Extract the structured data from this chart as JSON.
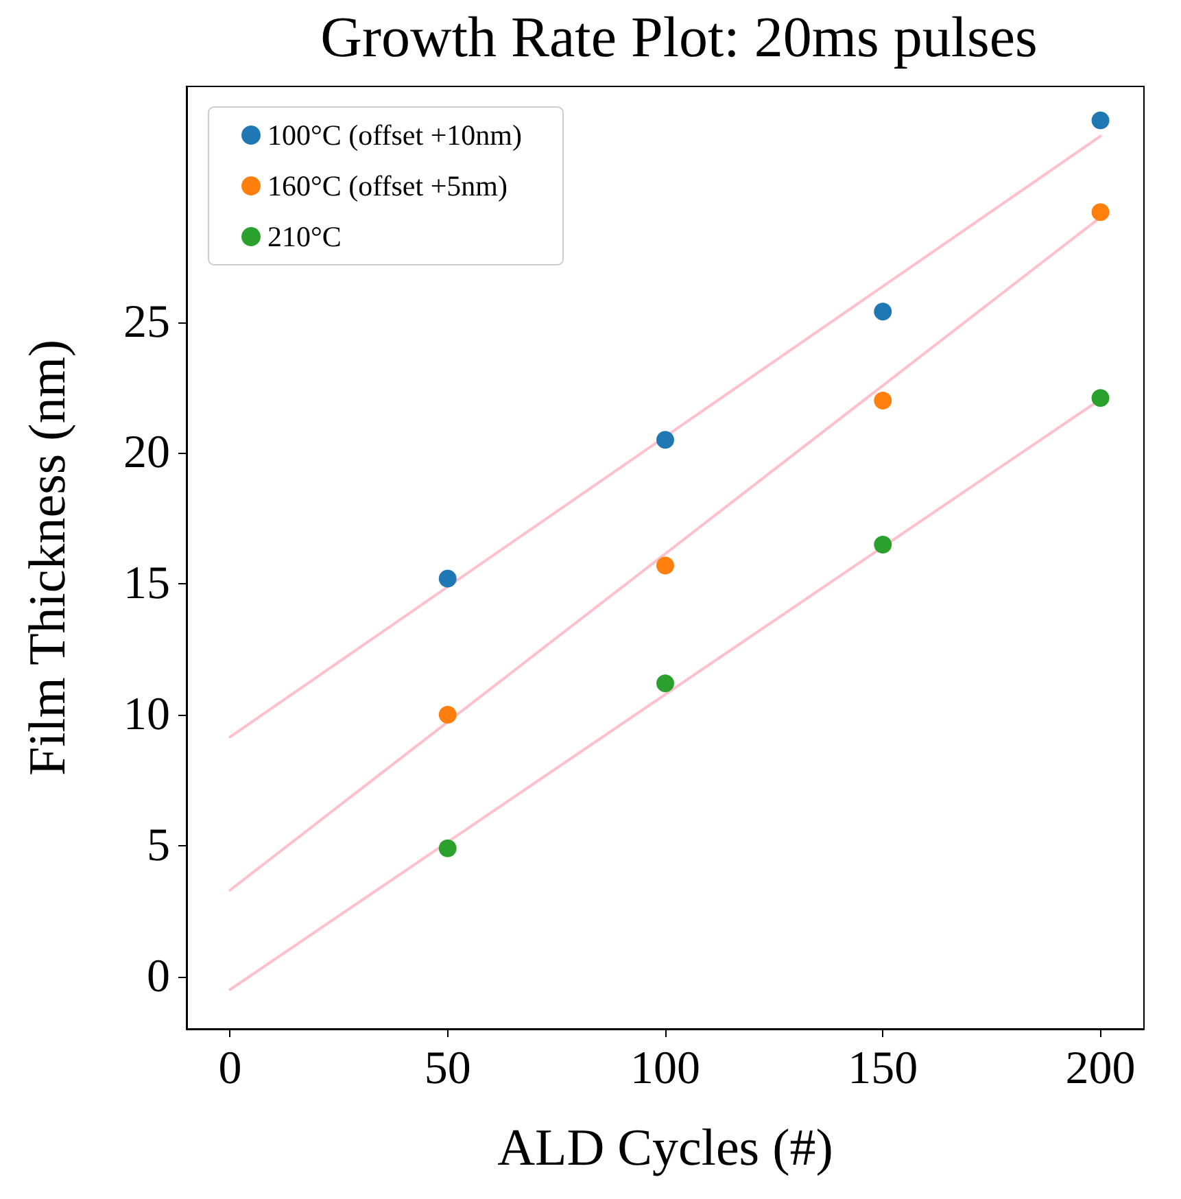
{
  "chart_data": {
    "type": "scatter",
    "title": "Growth Rate Plot: 20ms pulses",
    "xlabel": "ALD Cycles (#)",
    "ylabel": "Film Thickness (nm)",
    "xlim": [
      -10,
      210
    ],
    "xticks": [
      0,
      50,
      100,
      150,
      200
    ],
    "ylim": [
      -2,
      34
    ],
    "yticks": [
      0,
      5,
      10,
      15,
      20,
      25
    ],
    "grid": false,
    "legend": "top left",
    "series": [
      {
        "name": "100°C (offset +10nm)",
        "color": "#1f77b4",
        "x": [
          50,
          100,
          150,
          200
        ],
        "values": [
          15.2,
          20.5,
          25.4,
          32.7
        ],
        "marker": "circle"
      },
      {
        "name": "160°C (offset +5nm)",
        "color": "#ff7f0e",
        "x": [
          50,
          100,
          150,
          200
        ],
        "values": [
          10.0,
          15.7,
          22.0,
          29.2
        ],
        "marker": "circle"
      },
      {
        "name": "210°C",
        "color": "#2ca02c",
        "x": [
          50,
          100,
          150,
          200
        ],
        "values": [
          4.9,
          11.2,
          16.5,
          22.1
        ],
        "marker": "circle"
      },
      {
        "type": "line",
        "color": "#ffc0cb",
        "x": [
          0,
          200
        ],
        "values": [
          9.15,
          32.1
        ],
        "marker": "none"
      },
      {
        "type": "line",
        "color": "#ffc0cb",
        "x": [
          0,
          200
        ],
        "values": [
          3.3,
          29.0
        ],
        "marker": "none"
      },
      {
        "type": "line",
        "color": "#ffc0cb",
        "x": [
          0,
          200
        ],
        "values": [
          -0.5,
          22.05
        ],
        "marker": "none"
      }
    ]
  }
}
